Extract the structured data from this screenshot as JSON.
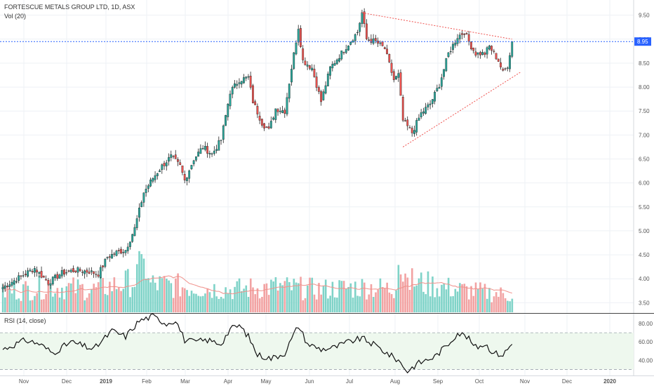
{
  "header": {
    "title": "FORTESCUE METALS GROUP LTD, 1D, ASX",
    "vol_label": "Vol (20)",
    "rsi_label": "RSI (14, close)"
  },
  "chart_data": {
    "type": "candlestick",
    "price_axis": {
      "ylim": [
        3.3,
        9.7
      ],
      "ticks": [
        "3.50",
        "4.00",
        "4.50",
        "5.00",
        "5.50",
        "6.00",
        "6.50",
        "7.00",
        "7.50",
        "8.00",
        "8.50",
        "9.00",
        "9.50"
      ],
      "last_price_label": "8.95",
      "last_price": 8.95
    },
    "rsi_axis": {
      "ylim": [
        25,
        90
      ],
      "ticks": [
        "40.00",
        "60.00",
        "80.00"
      ],
      "band": [
        30,
        70
      ]
    },
    "x_axis": {
      "labels": [
        "Nov",
        "Dec",
        "2019",
        "Feb",
        "Mar",
        "Apr",
        "May",
        "Jun",
        "Jul",
        "Aug",
        "Sep",
        "Oct",
        "Nov",
        "Dec",
        "2020"
      ],
      "bold_labels": [
        "2019",
        "2020"
      ]
    },
    "price_keypoints": [
      [
        0,
        3.82
      ],
      [
        8,
        4.05
      ],
      [
        14,
        4.22
      ],
      [
        20,
        3.92
      ],
      [
        26,
        4.12
      ],
      [
        32,
        4.18
      ],
      [
        38,
        4.15
      ],
      [
        42,
        4.1
      ],
      [
        46,
        4.45
      ],
      [
        50,
        4.55
      ],
      [
        54,
        4.6
      ],
      [
        58,
        5.05
      ],
      [
        62,
        5.8
      ],
      [
        66,
        6.1
      ],
      [
        70,
        6.35
      ],
      [
        74,
        6.55
      ],
      [
        78,
        6.35
      ],
      [
        80,
        6.05
      ],
      [
        84,
        6.5
      ],
      [
        88,
        6.75
      ],
      [
        92,
        6.6
      ],
      [
        96,
        6.9
      ],
      [
        100,
        7.9
      ],
      [
        104,
        8.15
      ],
      [
        108,
        8.2
      ],
      [
        110,
        7.7
      ],
      [
        114,
        7.25
      ],
      [
        117,
        7.1
      ],
      [
        120,
        7.55
      ],
      [
        124,
        7.5
      ],
      [
        127,
        8.4
      ],
      [
        130,
        9.25
      ],
      [
        132,
        8.55
      ],
      [
        136,
        8.4
      ],
      [
        140,
        7.7
      ],
      [
        144,
        8.4
      ],
      [
        148,
        8.65
      ],
      [
        152,
        8.9
      ],
      [
        156,
        9.15
      ],
      [
        158,
        9.55
      ],
      [
        160,
        9.0
      ],
      [
        164,
        8.95
      ],
      [
        168,
        8.8
      ],
      [
        172,
        8.15
      ],
      [
        174,
        8.25
      ],
      [
        176,
        7.3
      ],
      [
        180,
        7.05
      ],
      [
        184,
        7.45
      ],
      [
        188,
        7.65
      ],
      [
        192,
        8.05
      ],
      [
        196,
        8.7
      ],
      [
        200,
        9.05
      ],
      [
        203,
        9.15
      ],
      [
        206,
        8.85
      ],
      [
        208,
        8.7
      ],
      [
        212,
        8.7
      ],
      [
        214,
        8.85
      ],
      [
        218,
        8.55
      ],
      [
        220,
        8.3
      ],
      [
        222,
        8.45
      ],
      [
        224,
        8.95
      ]
    ],
    "volume_keypoints": [
      [
        0,
        0.35
      ],
      [
        20,
        0.45
      ],
      [
        40,
        0.4
      ],
      [
        58,
        0.55
      ],
      [
        62,
        0.9
      ],
      [
        64,
        0.5
      ],
      [
        80,
        0.45
      ],
      [
        100,
        0.4
      ],
      [
        120,
        0.45
      ],
      [
        140,
        0.4
      ],
      [
        160,
        0.45
      ],
      [
        172,
        0.4
      ],
      [
        174,
        0.85
      ],
      [
        178,
        0.55
      ],
      [
        200,
        0.4
      ],
      [
        224,
        0.3
      ]
    ],
    "rsi_keypoints": [
      [
        0,
        52
      ],
      [
        10,
        62
      ],
      [
        16,
        58
      ],
      [
        22,
        48
      ],
      [
        30,
        60
      ],
      [
        40,
        52
      ],
      [
        48,
        72
      ],
      [
        54,
        66
      ],
      [
        60,
        83
      ],
      [
        66,
        88
      ],
      [
        72,
        80
      ],
      [
        76,
        84
      ],
      [
        80,
        62
      ],
      [
        84,
        60
      ],
      [
        90,
        62
      ],
      [
        96,
        58
      ],
      [
        100,
        74
      ],
      [
        104,
        78
      ],
      [
        108,
        66
      ],
      [
        112,
        46
      ],
      [
        118,
        42
      ],
      [
        124,
        48
      ],
      [
        130,
        78
      ],
      [
        134,
        58
      ],
      [
        140,
        52
      ],
      [
        146,
        54
      ],
      [
        152,
        60
      ],
      [
        158,
        64
      ],
      [
        164,
        56
      ],
      [
        170,
        46
      ],
      [
        174,
        40
      ],
      [
        178,
        28
      ],
      [
        182,
        36
      ],
      [
        186,
        40
      ],
      [
        190,
        44
      ],
      [
        196,
        58
      ],
      [
        200,
        70
      ],
      [
        204,
        66
      ],
      [
        208,
        54
      ],
      [
        212,
        58
      ],
      [
        216,
        48
      ],
      [
        220,
        46
      ],
      [
        224,
        58
      ]
    ]
  }
}
